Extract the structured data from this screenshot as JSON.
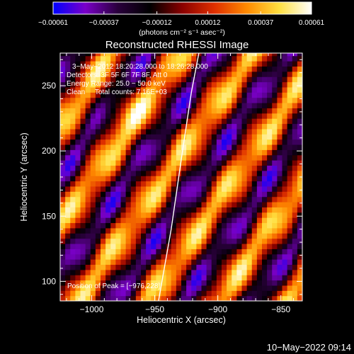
{
  "chart_data": {
    "type": "heatmap",
    "title": "Reconstructed RHESSI Image",
    "xlabel": "Heliocentric X (arcsec)",
    "ylabel": "Heliocentric Y (arcsec)",
    "xlim": [
      -1025,
      -833
    ],
    "ylim": [
      85,
      275
    ],
    "x_ticks": [
      -1000,
      -950,
      -900,
      -850
    ],
    "x_tick_labels": [
      "−1000",
      "−950",
      "−900",
      "−850"
    ],
    "y_ticks": [
      100,
      150,
      200,
      250
    ],
    "y_tick_labels": [
      "100",
      "150",
      "200",
      "250"
    ],
    "colorbar": {
      "range": [
        -0.00061,
        0.00061
      ],
      "ticks": [
        -0.00061,
        -0.00037,
        -0.00012,
        0.00012,
        0.00037,
        0.00061
      ],
      "tick_labels": [
        "−0.00061",
        "−0.00037",
        "−0.00012",
        "0.00012",
        "0.00037",
        "0.00061"
      ],
      "unit_label": "(photons cm⁻² s⁻¹ asec⁻²)",
      "colors": [
        "#0000ff",
        "#7a00c8",
        "#2a003c",
        "#000000",
        "#8a0000",
        "#e03000",
        "#ff8a00",
        "#ffe040",
        "#ffffff"
      ]
    },
    "annotations": [
      "3−May−2012 18:20:28.000 to 18:26:28.000",
      "Detectors: 3F 5F 6F 7F 8F, Att 0",
      "Energy Range: 25.0 − 50.0 keV",
      "Clean     Total counts: 7.16E+03"
    ],
    "peak_label": "Position of Peak = [−976,228]",
    "peak": [
      -976,
      228
    ],
    "limb": {
      "x": [
        -947,
        -937,
        -928,
        -921,
        -915
      ],
      "y": [
        85,
        140,
        200,
        245,
        275
      ]
    },
    "grid": false
  },
  "timestamp": "10−May−2022 09:14"
}
